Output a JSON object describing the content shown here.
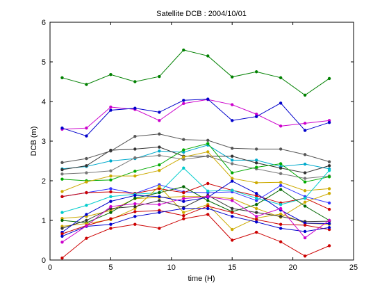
{
  "chart_data": {
    "type": "line",
    "title": "Satellite DCB : 2004/10/01",
    "xlabel": "time (H)",
    "ylabel": "DCB (m)",
    "xlim": [
      0,
      25
    ],
    "ylim": [
      0,
      6
    ],
    "xticks": [
      "0",
      "5",
      "10",
      "15",
      "20",
      "25"
    ],
    "yticks": [
      "0",
      "1",
      "2",
      "3",
      "4",
      "5",
      "6"
    ],
    "grid": false,
    "legend": "none",
    "x": [
      1,
      3,
      5,
      7,
      9,
      11,
      13,
      15,
      17,
      19,
      21,
      23
    ],
    "series": [
      {
        "color": "#008000",
        "values": [
          4.6,
          4.43,
          4.68,
          4.5,
          4.63,
          5.3,
          5.15,
          4.62,
          4.75,
          4.6,
          4.16,
          4.58
        ]
      },
      {
        "color": "#cc00cc",
        "values": [
          3.3,
          3.33,
          3.86,
          3.8,
          3.52,
          3.95,
          4.05,
          3.92,
          3.68,
          3.38,
          3.45,
          3.52
        ]
      },
      {
        "color": "#0000cc",
        "values": [
          3.33,
          3.13,
          3.78,
          3.83,
          3.73,
          4.03,
          4.06,
          3.52,
          3.62,
          3.96,
          3.27,
          3.47
        ]
      },
      {
        "color": "#555555",
        "values": [
          2.46,
          2.56,
          2.75,
          3.12,
          3.18,
          3.04,
          3.02,
          2.82,
          2.8,
          2.8,
          2.66,
          2.48
        ]
      },
      {
        "color": "#00aacc",
        "values": [
          2.3,
          2.36,
          2.5,
          2.56,
          2.75,
          2.72,
          2.9,
          2.52,
          2.52,
          2.36,
          2.42,
          2.3
        ]
      },
      {
        "color": "#333333",
        "values": [
          2.28,
          2.38,
          2.77,
          2.8,
          2.85,
          2.62,
          2.62,
          2.62,
          2.45,
          2.32,
          2.2,
          2.38
        ]
      },
      {
        "color": "#777777",
        "values": [
          2.17,
          2.2,
          2.25,
          2.58,
          2.64,
          2.54,
          2.62,
          2.43,
          2.3,
          2.18,
          2.06,
          2.12
        ]
      },
      {
        "color": "#00aa00",
        "values": [
          2.04,
          2.0,
          2.02,
          2.24,
          2.4,
          2.78,
          2.94,
          2.2,
          2.34,
          2.43,
          1.97,
          2.1
        ]
      },
      {
        "color": "#ccaa00",
        "values": [
          1.73,
          1.97,
          2.12,
          2.12,
          2.26,
          2.6,
          2.73,
          2.06,
          1.95,
          1.96,
          1.75,
          1.8
        ]
      },
      {
        "color": "#3333ff",
        "values": [
          1.6,
          1.7,
          1.8,
          1.68,
          1.9,
          1.72,
          1.7,
          1.72,
          1.5,
          1.88,
          1.6,
          1.44
        ]
      },
      {
        "color": "#cc0000",
        "values": [
          1.6,
          1.7,
          1.72,
          1.68,
          1.8,
          1.7,
          1.93,
          1.76,
          1.62,
          1.44,
          1.56,
          1.28
        ]
      },
      {
        "color": "#00cccc",
        "values": [
          1.2,
          1.38,
          1.6,
          1.66,
          1.7,
          2.32,
          1.74,
          1.76,
          1.56,
          1.4,
          1.56,
          2.26
        ]
      },
      {
        "color": "#ccaa00",
        "values": [
          1.05,
          1.1,
          1.25,
          1.55,
          1.58,
          1.6,
          1.6,
          1.55,
          1.3,
          1.08,
          1.46,
          1.68
        ]
      },
      {
        "color": "#006600",
        "values": [
          1.0,
          0.94,
          1.2,
          1.56,
          1.7,
          1.85,
          1.5,
          1.22,
          1.4,
          1.78,
          1.36,
          1.0
        ]
      },
      {
        "color": "#ccaa00",
        "values": [
          0.85,
          0.92,
          1.02,
          1.3,
          1.86,
          1.2,
          1.4,
          0.77,
          1.06,
          1.16,
          0.93,
          0.9
        ]
      },
      {
        "color": "#333333",
        "values": [
          0.8,
          1.0,
          1.3,
          1.35,
          1.5,
          1.33,
          1.63,
          1.3,
          1.2,
          1.1,
          0.97,
          0.98
        ]
      },
      {
        "color": "#0000cc",
        "values": [
          0.7,
          1.15,
          1.48,
          1.63,
          1.6,
          1.48,
          1.58,
          1.99,
          1.68,
          1.26,
          0.93,
          0.92
        ]
      },
      {
        "color": "#cc0000",
        "values": [
          0.66,
          0.87,
          1.04,
          1.22,
          1.25,
          1.12,
          1.36,
          1.2,
          1.02,
          0.9,
          0.88,
          0.77
        ]
      },
      {
        "color": "#0000cc",
        "values": [
          0.6,
          0.85,
          0.9,
          1.1,
          1.2,
          1.3,
          1.3,
          1.1,
          0.96,
          0.8,
          0.72,
          0.82
        ]
      },
      {
        "color": "#cc00cc",
        "values": [
          0.45,
          0.86,
          1.35,
          1.42,
          1.4,
          1.55,
          1.6,
          1.5,
          1.1,
          1.3,
          0.56,
          1.0
        ]
      },
      {
        "color": "#cc0000",
        "values": [
          0.05,
          0.55,
          0.8,
          0.9,
          0.8,
          1.04,
          1.15,
          0.5,
          0.7,
          0.46,
          0.1,
          0.36
        ]
      }
    ]
  }
}
